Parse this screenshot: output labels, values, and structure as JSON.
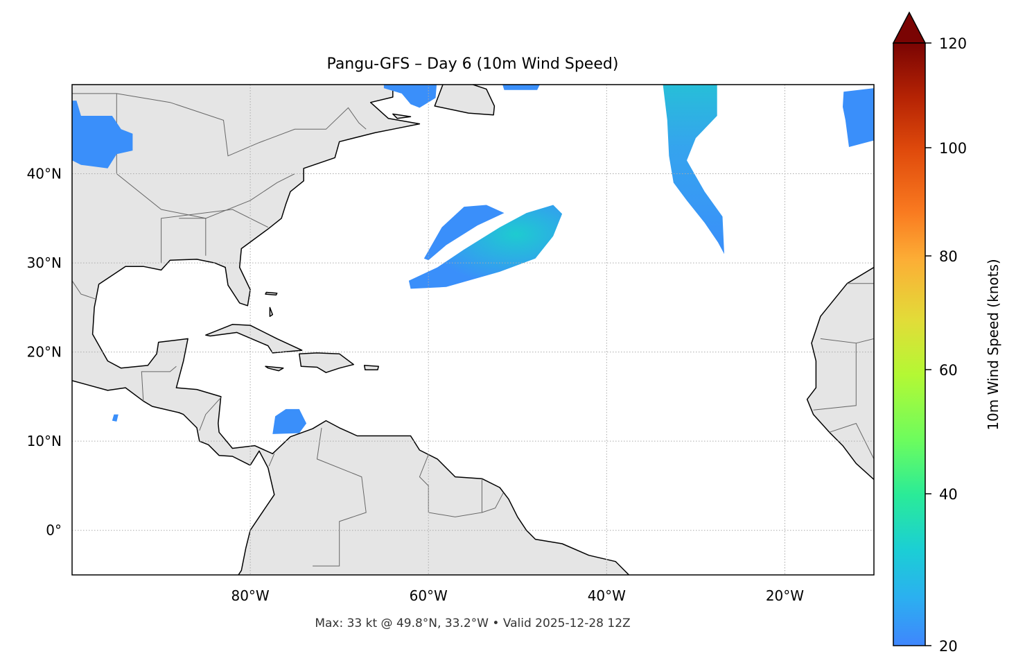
{
  "title": "Pangu-GFS – Day 6 (10m Wind Speed)",
  "footer": "Max: 33 kt @ 49.8°N, 33.2°W • Valid 2025-12-28 12Z",
  "map": {
    "extent": {
      "lon": [
        -100,
        -10
      ],
      "lat": [
        -5,
        50
      ]
    },
    "projection": "PlateCarree",
    "gridlines": "dotted",
    "land_color": "#e5e5e5",
    "coast_color": "#000000",
    "border_color": "#666666",
    "x_ticks": [
      {
        "value": -80,
        "label": "80°W"
      },
      {
        "value": -60,
        "label": "60°W"
      },
      {
        "value": -40,
        "label": "40°W"
      },
      {
        "value": -20,
        "label": "20°W"
      }
    ],
    "y_ticks": [
      {
        "value": 40,
        "label": "40°N"
      },
      {
        "value": 30,
        "label": "30°N"
      },
      {
        "value": 20,
        "label": "20°N"
      },
      {
        "value": 10,
        "label": "10°N"
      },
      {
        "value": 0,
        "label": "0°"
      }
    ]
  },
  "colorbar": {
    "label": "10m Wind Speed (knots)",
    "range": [
      20,
      120
    ],
    "extend": "max",
    "colormap": "turbo",
    "ticks": [
      {
        "value": 20,
        "label": "20"
      },
      {
        "value": 40,
        "label": "40"
      },
      {
        "value": 60,
        "label": "60"
      },
      {
        "value": 80,
        "label": "80"
      },
      {
        "value": 100,
        "label": "100"
      },
      {
        "value": 120,
        "label": "120"
      }
    ]
  },
  "wind_colors": {
    "low": "#3a8ffa",
    "mid": "#22c3d8"
  }
}
